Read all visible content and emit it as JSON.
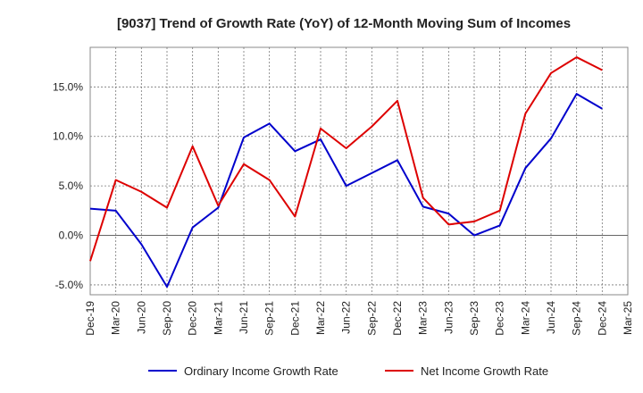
{
  "chart_data": {
    "type": "line",
    "title": "[9037]  Trend of Growth Rate (YoY) of 12-Month Moving Sum of Incomes",
    "x": [
      "Dec-19",
      "Mar-20",
      "Jun-20",
      "Sep-20",
      "Dec-20",
      "Mar-21",
      "Jun-21",
      "Sep-21",
      "Dec-21",
      "Mar-22",
      "Jun-22",
      "Sep-22",
      "Dec-22",
      "Mar-23",
      "Jun-23",
      "Sep-23",
      "Dec-23",
      "Mar-24",
      "Jun-24",
      "Sep-24",
      "Dec-24",
      "Mar-25"
    ],
    "ylim": [
      -6.0,
      19.0
    ],
    "yticks": [
      -5.0,
      0.0,
      5.0,
      10.0,
      15.0
    ],
    "ytick_labels": [
      "-5.0%",
      "0.0%",
      "5.0%",
      "10.0%",
      "15.0%"
    ],
    "grid": true,
    "legend_position": "bottom",
    "series": [
      {
        "name": "Ordinary Income Growth Rate",
        "color": "#0000cc",
        "values": [
          2.7,
          2.5,
          -0.9,
          -5.2,
          0.8,
          2.8,
          9.9,
          11.3,
          8.5,
          9.7,
          5.0,
          6.3,
          7.6,
          2.9,
          2.2,
          0.0,
          1.0,
          6.8,
          9.8,
          14.3,
          12.8,
          null
        ]
      },
      {
        "name": "Net Income Growth Rate",
        "color": "#dd0000",
        "values": [
          -2.6,
          5.6,
          4.4,
          2.8,
          9.0,
          3.0,
          7.2,
          5.6,
          1.9,
          10.8,
          8.8,
          11.0,
          13.6,
          3.8,
          1.1,
          1.4,
          2.5,
          12.3,
          16.4,
          18.0,
          16.7,
          null
        ]
      }
    ]
  }
}
